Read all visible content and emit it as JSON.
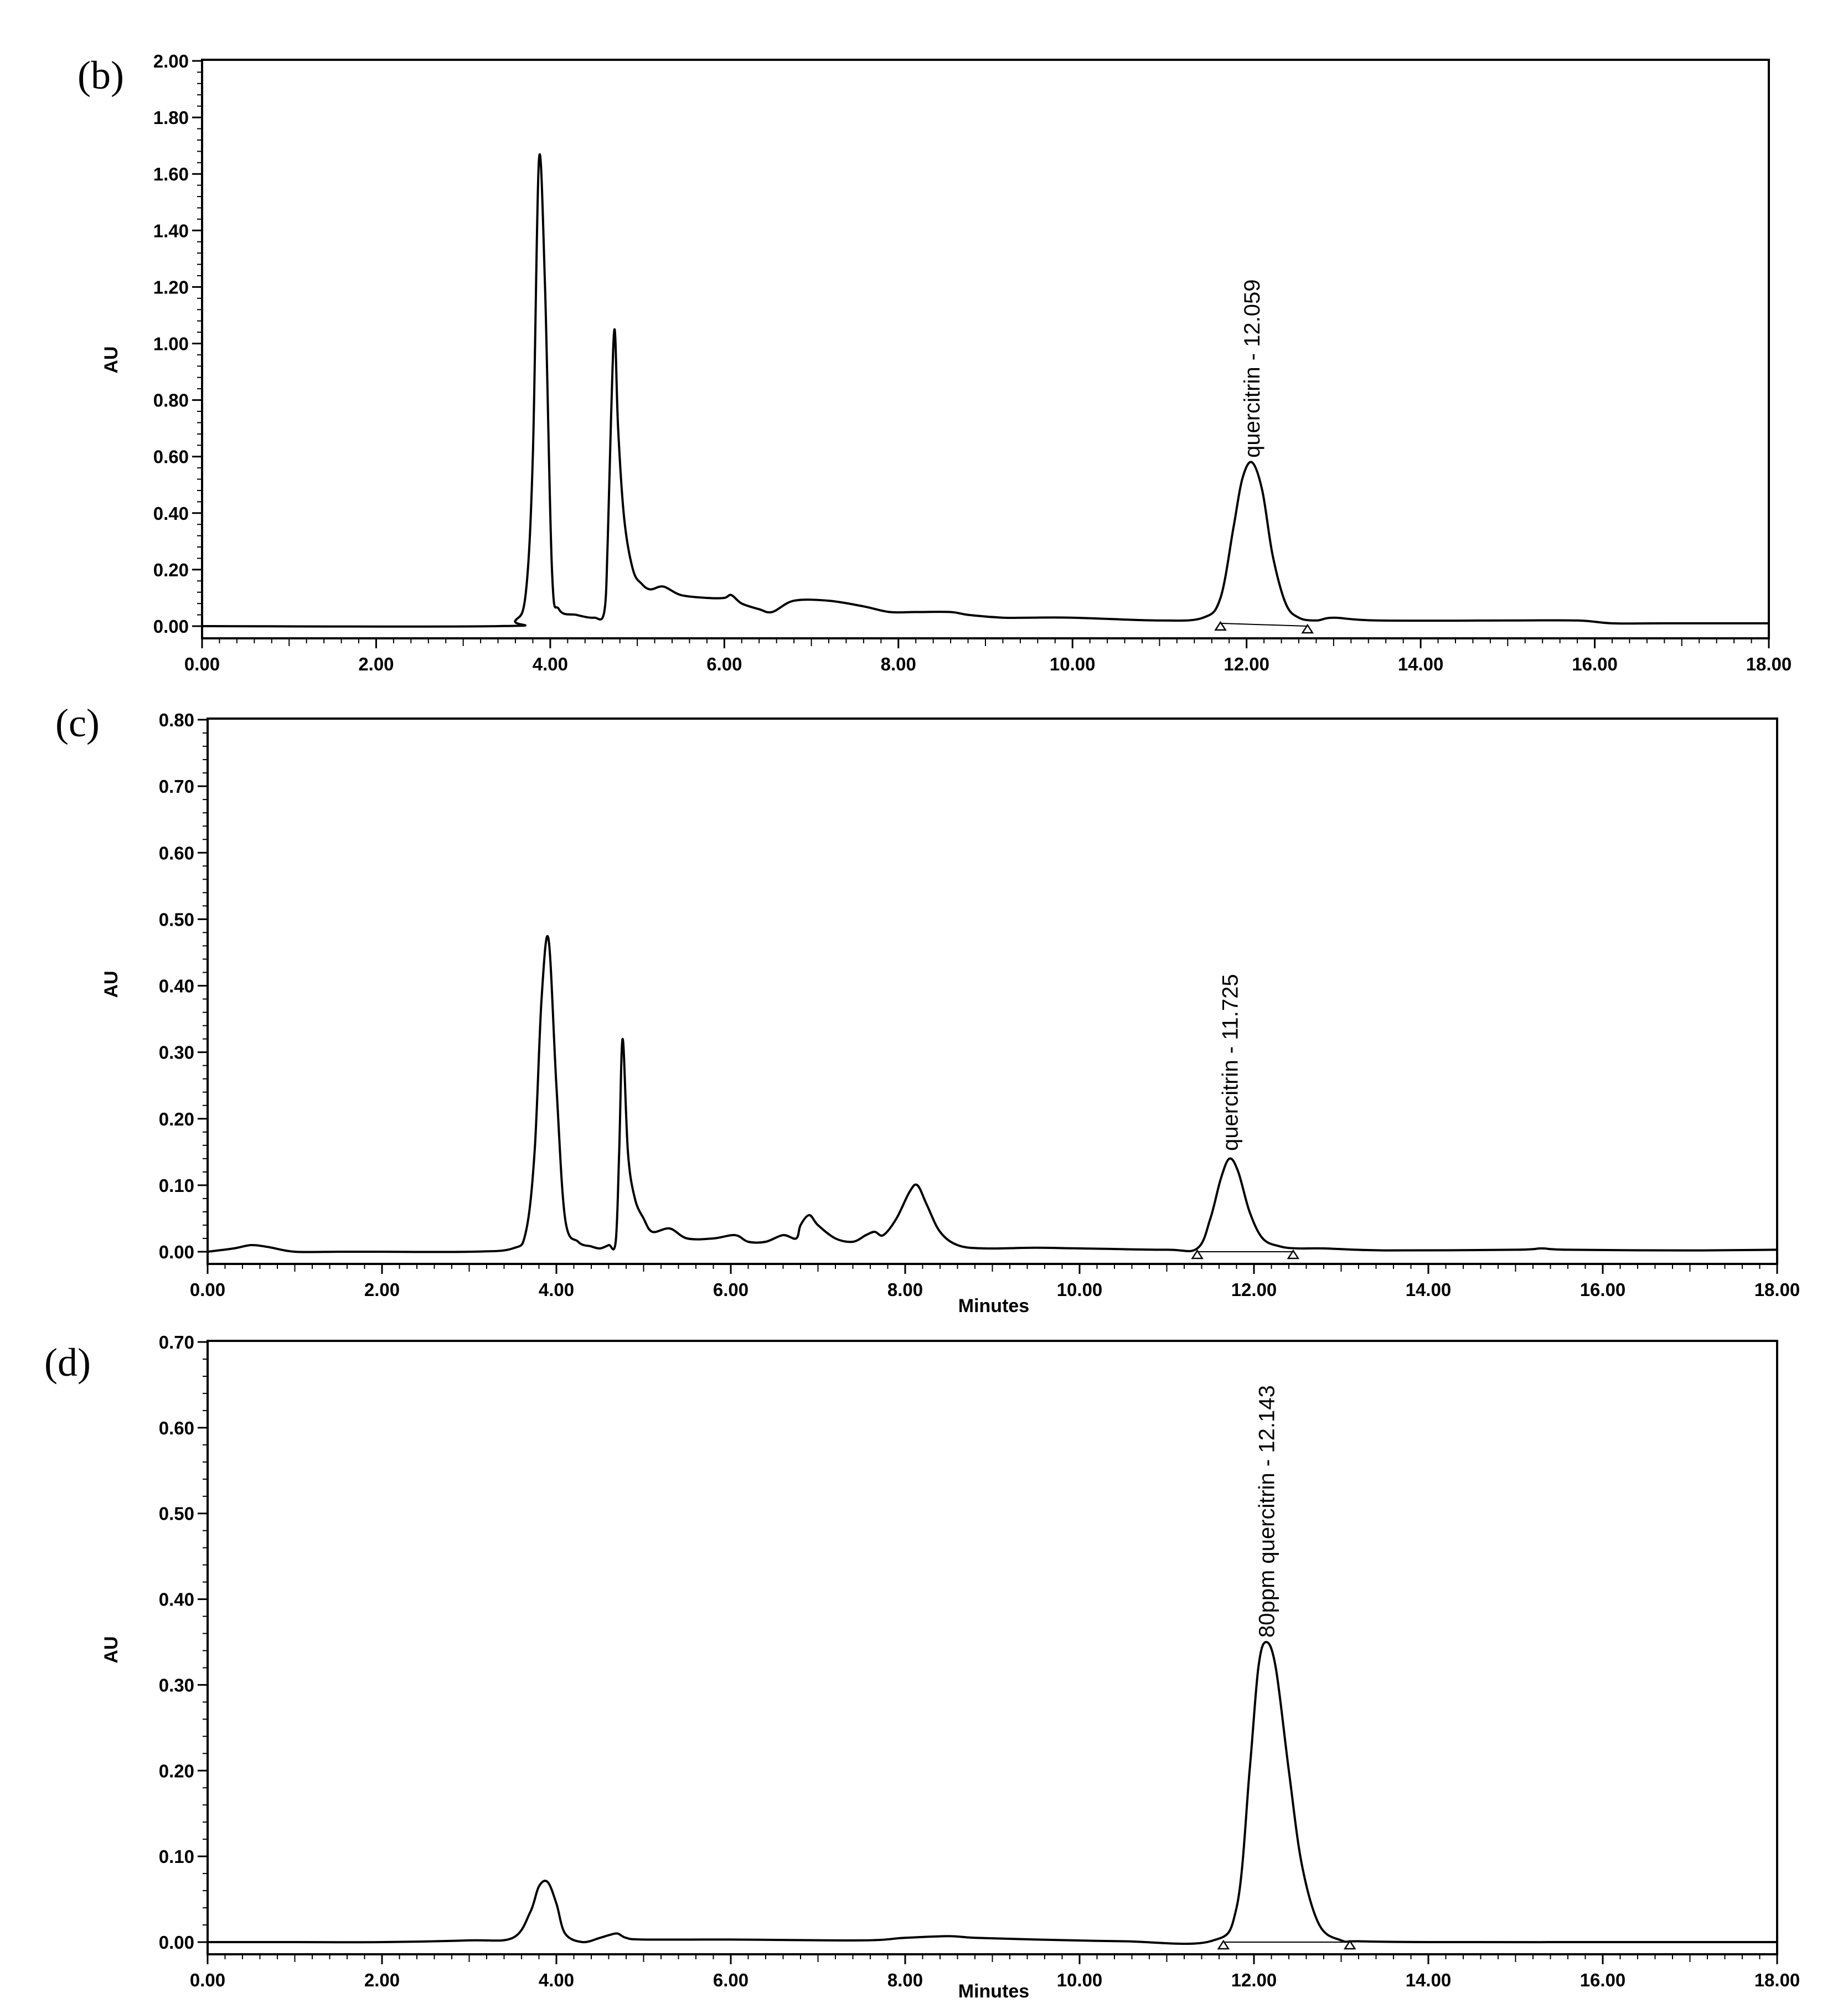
{
  "chart_data": [
    {
      "type": "line",
      "panel_label": "(b)",
      "xlabel": "",
      "ylabel": "AU",
      "xlim": [
        0,
        18
      ],
      "ylim": [
        0,
        2.0
      ],
      "x_ticks": [
        "0.00",
        "2.00",
        "4.00",
        "6.00",
        "8.00",
        "10.00",
        "12.00",
        "14.00",
        "16.00",
        "18.00"
      ],
      "y_ticks": [
        "0.00",
        "0.20",
        "0.40",
        "0.60",
        "0.80",
        "1.00",
        "1.20",
        "1.40",
        "1.60",
        "1.80",
        "2.00"
      ],
      "grid": false,
      "series": [
        {
          "x": [
            0.0,
            3.4,
            3.6,
            3.72,
            3.8,
            3.87,
            3.94,
            4.02,
            4.1,
            4.3,
            4.5,
            4.62,
            4.66,
            4.7,
            4.74,
            4.78,
            4.85,
            4.95,
            5.05,
            5.15,
            5.3,
            5.5,
            5.8,
            6.0,
            6.08,
            6.2,
            6.4,
            6.55,
            6.8,
            7.2,
            7.6,
            7.9,
            8.2,
            8.6,
            8.8,
            9.2,
            9.5,
            10.0,
            11.0,
            11.5,
            11.7,
            11.85,
            11.95,
            12.06,
            12.18,
            12.3,
            12.45,
            12.6,
            12.8,
            13.0,
            13.5,
            15.0,
            15.8,
            16.2,
            16.8,
            18.0
          ],
          "y": [
            0.0,
            0.0,
            0.02,
            0.12,
            0.6,
            1.65,
            1.2,
            0.2,
            0.06,
            0.04,
            0.03,
            0.05,
            0.3,
            0.75,
            1.05,
            0.7,
            0.38,
            0.2,
            0.15,
            0.13,
            0.14,
            0.11,
            0.1,
            0.1,
            0.11,
            0.08,
            0.06,
            0.05,
            0.09,
            0.09,
            0.07,
            0.05,
            0.05,
            0.05,
            0.04,
            0.03,
            0.03,
            0.03,
            0.02,
            0.03,
            0.1,
            0.35,
            0.52,
            0.58,
            0.48,
            0.25,
            0.08,
            0.03,
            0.02,
            0.03,
            0.02,
            0.02,
            0.02,
            0.01,
            0.01,
            0.01
          ]
        }
      ],
      "peak_annotation": {
        "text": "quercitrin - 12.059",
        "x": 12.059,
        "y": 0.58
      },
      "integration_markers": {
        "start": [
          11.7,
          0.01
        ],
        "end": [
          12.7,
          0.0
        ]
      }
    },
    {
      "type": "line",
      "panel_label": "(c)",
      "xlabel": "Minutes",
      "ylabel": "AU",
      "xlim": [
        0,
        18
      ],
      "ylim": [
        0,
        0.8
      ],
      "x_ticks": [
        "0.00",
        "2.00",
        "4.00",
        "6.00",
        "8.00",
        "10.00",
        "12.00",
        "14.00",
        "16.00",
        "18.00"
      ],
      "y_ticks": [
        "0.00",
        "0.10",
        "0.20",
        "0.30",
        "0.40",
        "0.50",
        "0.60",
        "0.70",
        "0.80"
      ],
      "grid": false,
      "series": [
        {
          "x": [
            0.0,
            0.3,
            0.5,
            0.7,
            1.0,
            1.5,
            2.0,
            3.0,
            3.5,
            3.65,
            3.75,
            3.83,
            3.91,
            4.0,
            4.1,
            4.25,
            4.4,
            4.5,
            4.6,
            4.68,
            4.72,
            4.76,
            4.82,
            4.9,
            5.0,
            5.1,
            5.3,
            5.5,
            5.8,
            6.05,
            6.2,
            6.4,
            6.6,
            6.75,
            6.8,
            6.9,
            7.0,
            7.2,
            7.4,
            7.55,
            7.65,
            7.75,
            7.9,
            8.05,
            8.14,
            8.25,
            8.4,
            8.6,
            8.9,
            9.5,
            10.0,
            11.0,
            11.35,
            11.5,
            11.62,
            11.72,
            11.82,
            11.95,
            12.1,
            12.3,
            12.5,
            12.8,
            13.5,
            15.0,
            15.3,
            15.6,
            17.0,
            18.0
          ],
          "y": [
            0.0,
            0.005,
            0.01,
            0.007,
            0.0,
            0.0,
            0.0,
            0.0,
            0.005,
            0.03,
            0.15,
            0.38,
            0.47,
            0.25,
            0.05,
            0.015,
            0.008,
            0.005,
            0.01,
            0.015,
            0.15,
            0.32,
            0.15,
            0.08,
            0.05,
            0.03,
            0.035,
            0.02,
            0.02,
            0.025,
            0.015,
            0.015,
            0.025,
            0.02,
            0.04,
            0.055,
            0.04,
            0.02,
            0.015,
            0.025,
            0.03,
            0.025,
            0.05,
            0.09,
            0.1,
            0.07,
            0.03,
            0.01,
            0.005,
            0.006,
            0.005,
            0.003,
            0.005,
            0.05,
            0.11,
            0.14,
            0.12,
            0.06,
            0.02,
            0.008,
            0.005,
            0.005,
            0.002,
            0.003,
            0.005,
            0.003,
            0.002,
            0.003
          ]
        }
      ],
      "peak_annotation": {
        "text": "quercitrin - 11.725",
        "x": 11.725,
        "y": 0.145
      },
      "integration_markers": {
        "start": [
          11.35,
          0.0
        ],
        "end": [
          12.45,
          0.0
        ]
      }
    },
    {
      "type": "line",
      "panel_label": "(d)",
      "xlabel": "Minutes",
      "ylabel": "AU",
      "xlim": [
        0,
        18
      ],
      "ylim": [
        0,
        0.7
      ],
      "x_ticks": [
        "0.00",
        "2.00",
        "4.00",
        "6.00",
        "8.00",
        "10.00",
        "12.00",
        "14.00",
        "16.00",
        "18.00"
      ],
      "y_ticks": [
        "0.00",
        "0.10",
        "0.20",
        "0.30",
        "0.40",
        "0.50",
        "0.60",
        "0.70"
      ],
      "grid": false,
      "series": [
        {
          "x": [
            0.0,
            1.0,
            2.0,
            3.0,
            3.5,
            3.7,
            3.8,
            3.9,
            4.0,
            4.1,
            4.3,
            4.5,
            4.6,
            4.7,
            4.8,
            5.0,
            6.0,
            7.5,
            8.0,
            8.5,
            8.8,
            9.5,
            10.5,
            11.5,
            11.8,
            11.95,
            12.05,
            12.14,
            12.25,
            12.4,
            12.55,
            12.75,
            13.0,
            13.2,
            14.0,
            16.0,
            18.0
          ],
          "y": [
            0.0,
            0.0,
            0.0,
            0.002,
            0.005,
            0.035,
            0.065,
            0.07,
            0.045,
            0.01,
            0.0,
            0.005,
            0.008,
            0.01,
            0.005,
            0.003,
            0.003,
            0.002,
            0.005,
            0.007,
            0.005,
            0.003,
            0.001,
            0.001,
            0.04,
            0.2,
            0.32,
            0.35,
            0.32,
            0.2,
            0.09,
            0.02,
            0.002,
            0.001,
            0.0,
            0.0,
            0.0
          ]
        }
      ],
      "peak_annotation": {
        "text": "80ppm quercitrin - 12.143",
        "x": 12.143,
        "y": 0.35
      },
      "integration_markers": {
        "start": [
          11.65,
          0.0
        ],
        "end": [
          13.1,
          0.0
        ]
      }
    }
  ]
}
